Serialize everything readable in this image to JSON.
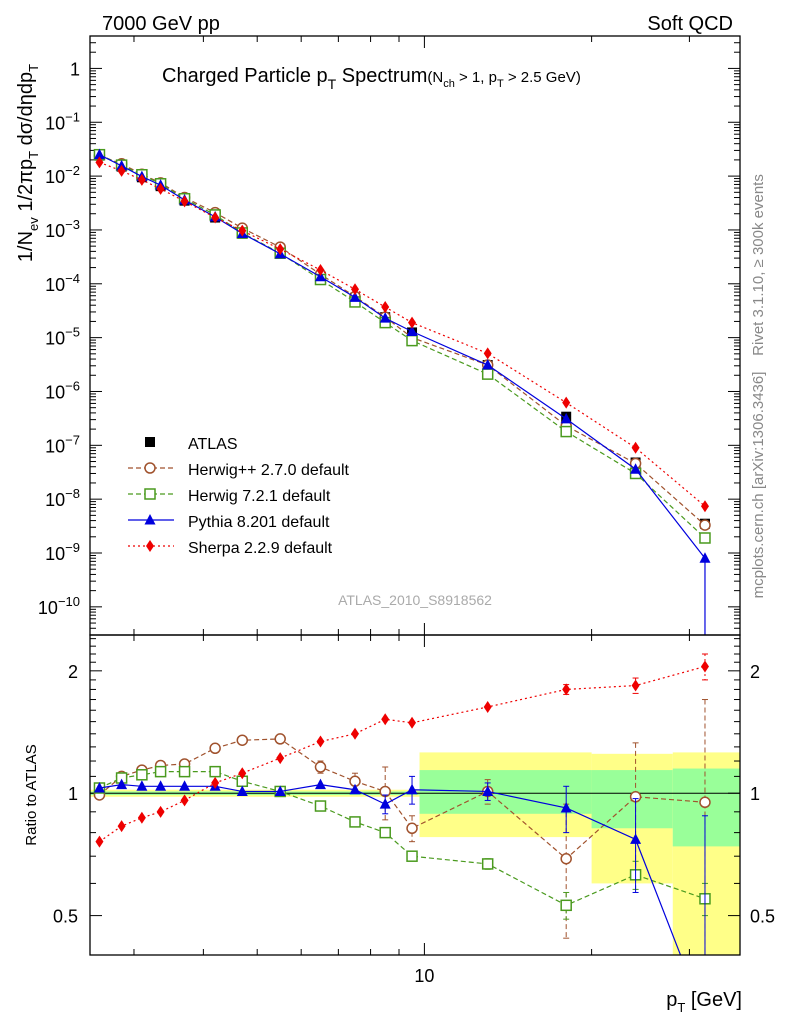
{
  "header": {
    "left": "7000 GeV pp",
    "right": "Soft QCD"
  },
  "side_labels": {
    "rivet": "Rivet 3.1.10, ≥ 300k events",
    "mcplots": "mcplots.cern.ch [arXiv:1306.3436]"
  },
  "chart_data": {
    "type": "line",
    "title": {
      "main": "Charged Particle p",
      "main_sub": "T",
      "main_rest": " Spectrum",
      "cond_open": "(N",
      "cond_sub1": "ch",
      "cond_mid": " > 1, p",
      "cond_sub2": "T",
      "cond_end": " > 2.5 GeV)"
    },
    "watermark": "ATLAS_2010_S8918562",
    "x_axis": {
      "scale": "log",
      "range": [
        2.5,
        37
      ],
      "label_main": "p",
      "label_sub": "T",
      "label_unit": "[GeV]",
      "tick_labels": [
        {
          "value": 10,
          "text": "10"
        }
      ]
    },
    "y_axis_main": {
      "scale": "log",
      "range": [
        3e-11,
        4
      ],
      "label": {
        "p1": "1/N",
        "s1": "ev",
        "p2": " 1/2πp",
        "s2": "T",
        "p3": " dσ/dηdp",
        "s3": "T"
      },
      "tick_labels": [
        {
          "value": 1,
          "text": "1"
        },
        {
          "value": 0.1,
          "base": "10",
          "exp": "−1"
        },
        {
          "value": 0.01,
          "base": "10",
          "exp": "−2"
        },
        {
          "value": 0.001,
          "base": "10",
          "exp": "−3"
        },
        {
          "value": 0.0001,
          "base": "10",
          "exp": "−4"
        },
        {
          "value": 1e-05,
          "base": "10",
          "exp": "−5"
        },
        {
          "value": 1e-06,
          "base": "10",
          "exp": "−6"
        },
        {
          "value": 1e-07,
          "base": "10",
          "exp": "−7"
        },
        {
          "value": 1e-08,
          "base": "10",
          "exp": "−8"
        },
        {
          "value": 1e-09,
          "base": "10",
          "exp": "−9"
        },
        {
          "value": 1e-10,
          "base": "10",
          "exp": "−10"
        }
      ]
    },
    "y_axis_ratio": {
      "scale": "log",
      "range": [
        0.4,
        2.45
      ],
      "label": "Ratio to ATLAS",
      "tick_labels": [
        {
          "value": 0.5,
          "text": "0.5"
        },
        {
          "value": 1,
          "text": "1"
        },
        {
          "value": 2,
          "text": "2"
        }
      ]
    },
    "x": [
      2.6,
      2.85,
      3.1,
      3.35,
      3.7,
      4.2,
      4.7,
      5.5,
      6.5,
      7.5,
      8.5,
      9.5,
      13,
      18,
      24,
      32
    ],
    "atlas_values": [
      0.024,
      0.015,
      0.0095,
      0.0065,
      0.0035,
      0.0017,
      0.00085,
      0.00036,
      0.00013,
      5.5e-05,
      2.4e-05,
      1.25e-05,
      3.1e-06,
      3.4e-07,
      4.8e-08,
      3.5e-09
    ],
    "atlas_band": [
      {
        "x1": 2.5,
        "x2": 9.8,
        "y1": 0.98,
        "y2": 1.02,
        "sy1": 0.99,
        "sy2": 1.01
      },
      {
        "x1": 9.8,
        "x2": 20,
        "y1": 0.78,
        "y2": 1.26,
        "sy1": 0.89,
        "sy2": 1.14
      },
      {
        "x1": 20,
        "x2": 28,
        "y1": 0.6,
        "y2": 1.25,
        "sy1": 0.82,
        "sy2": 1.14
      },
      {
        "x1": 28,
        "x2": 37,
        "y1": 0.3,
        "y2": 1.26,
        "sy1": 0.74,
        "sy2": 1.15
      }
    ],
    "series": [
      {
        "name": "Herwig++ 2.7.0 default",
        "color": "#a0522d",
        "dash": "5,3",
        "marker": "open-circle",
        "values": [
          0.024,
          0.017,
          0.0108,
          0.0075,
          0.004,
          0.0021,
          0.00108,
          0.00048,
          0.00015,
          5.8e-05,
          2.4e-05,
          1e-05,
          3.1e-06,
          2.3e-07,
          4.6e-08,
          3.3e-09
        ],
        "ratio": [
          0.99,
          1.1,
          1.14,
          1.17,
          1.18,
          1.29,
          1.35,
          1.36,
          1.16,
          1.07,
          1.01,
          0.82,
          1.01,
          0.69,
          0.98,
          0.95
        ],
        "err": [
          0,
          0,
          0,
          0,
          0,
          0,
          0,
          0,
          0.04,
          0.05,
          0.15,
          0.06,
          0.07,
          0.25,
          0.35,
          0.75
        ]
      },
      {
        "name": "Herwig 7.2.1 default",
        "color": "#4a9a1e",
        "dash": "5,3",
        "marker": "open-square",
        "values": [
          0.025,
          0.016,
          0.0106,
          0.0072,
          0.0038,
          0.0019,
          0.00088,
          0.00037,
          0.00012,
          4.6e-05,
          1.9e-05,
          8.8e-06,
          2.1e-06,
          1.8e-07,
          3e-08,
          1.9e-09
        ],
        "ratio": [
          1.03,
          1.09,
          1.11,
          1.13,
          1.13,
          1.13,
          1.07,
          1.01,
          0.93,
          0.85,
          0.8,
          0.7,
          0.67,
          0.53,
          0.63,
          0.55
        ],
        "err": [
          0,
          0,
          0,
          0,
          0,
          0,
          0,
          0,
          0,
          0,
          0,
          0,
          0.02,
          0.04,
          0.05,
          0.05
        ]
      },
      {
        "name": "Pythia 8.201 default",
        "color": "#0000dd",
        "dash": "",
        "marker": "filled-triangle",
        "values": [
          0.025,
          0.0155,
          0.0098,
          0.0068,
          0.0036,
          0.00175,
          0.00086,
          0.00036,
          0.000135,
          5.6e-05,
          2.3e-05,
          1.3e-05,
          3.1e-06,
          3.1e-07,
          3.6e-08,
          8e-10
        ],
        "ratio": [
          1.03,
          1.05,
          1.04,
          1.04,
          1.04,
          1.04,
          1.01,
          1.01,
          1.05,
          1.02,
          0.94,
          1.02,
          1.01,
          0.92,
          0.77,
          0.28
        ],
        "err": [
          0,
          0,
          0,
          0,
          0,
          0,
          0,
          0,
          0,
          0,
          0.05,
          0.08,
          0.05,
          0.12,
          0.2,
          0.6
        ]
      },
      {
        "name": "Sherpa 2.2.9 default",
        "color": "#ee0000",
        "dash": "2,3",
        "marker": "filled-diamond",
        "values": [
          0.018,
          0.0125,
          0.0085,
          0.0058,
          0.0034,
          0.0017,
          0.00097,
          0.00044,
          0.00018,
          7.9e-05,
          3.7e-05,
          1.9e-05,
          5.1e-06,
          6.2e-07,
          9e-08,
          7.4e-09
        ],
        "ratio": [
          0.76,
          0.83,
          0.87,
          0.9,
          0.96,
          1.06,
          1.12,
          1.22,
          1.34,
          1.4,
          1.52,
          1.49,
          1.63,
          1.8,
          1.84,
          2.05
        ],
        "err": [
          0,
          0,
          0,
          0,
          0,
          0,
          0,
          0,
          0,
          0,
          0,
          0,
          0,
          0.05,
          0.08,
          0.15
        ]
      }
    ],
    "legend": {
      "placement": "lower-left",
      "atlas_label": "ATLAS"
    }
  }
}
